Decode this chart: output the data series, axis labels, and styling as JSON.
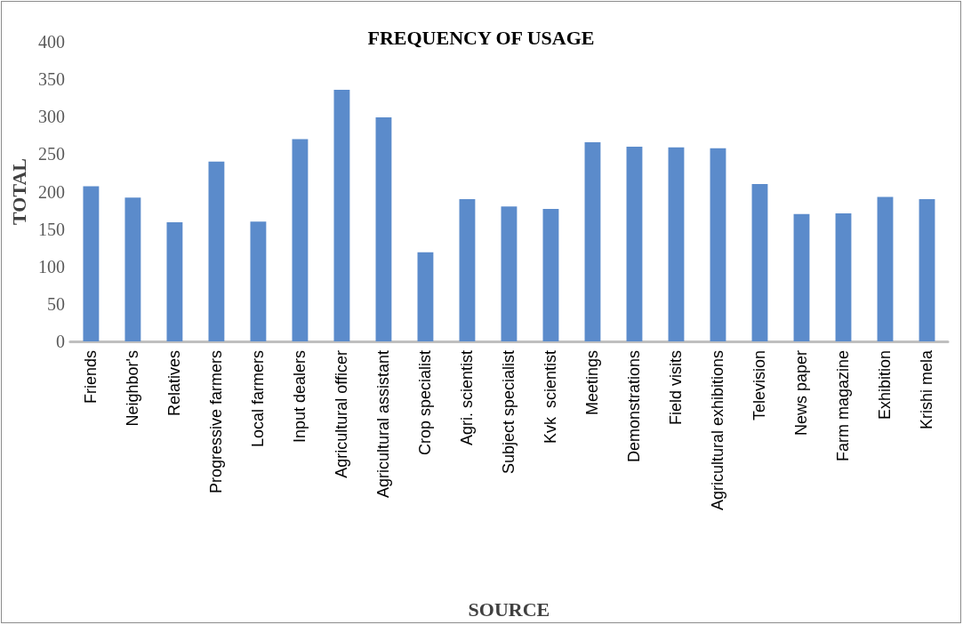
{
  "chart_data": {
    "type": "bar",
    "title": "FREQUENCY OF USAGE",
    "xlabel": "SOURCE",
    "ylabel": "TOTAL",
    "categories": [
      "Friends",
      "Neighbor's",
      "Relatives",
      "Progressive farmers",
      "Local farmers",
      "Input dealers",
      "Agricultural officer",
      "Agricultural assistant",
      "Crop specialist",
      "Agri. scientist",
      "Subject specialist",
      "Kvk  scientist",
      "Meetings",
      "Demonstrations",
      "Field visits",
      "Agricultural exhibitions",
      "Television",
      "News paper",
      "Farm magazine",
      "Exhibition",
      "Krishi mela"
    ],
    "values": [
      207,
      192,
      159,
      240,
      160,
      270,
      336,
      299,
      119,
      190,
      180,
      177,
      266,
      260,
      259,
      258,
      210,
      170,
      171,
      193,
      190
    ],
    "color": "#5b8bcb",
    "ylim": [
      0,
      400
    ],
    "yticks": [
      0,
      50,
      100,
      150,
      200,
      250,
      300,
      350,
      400
    ],
    "grid": false
  }
}
